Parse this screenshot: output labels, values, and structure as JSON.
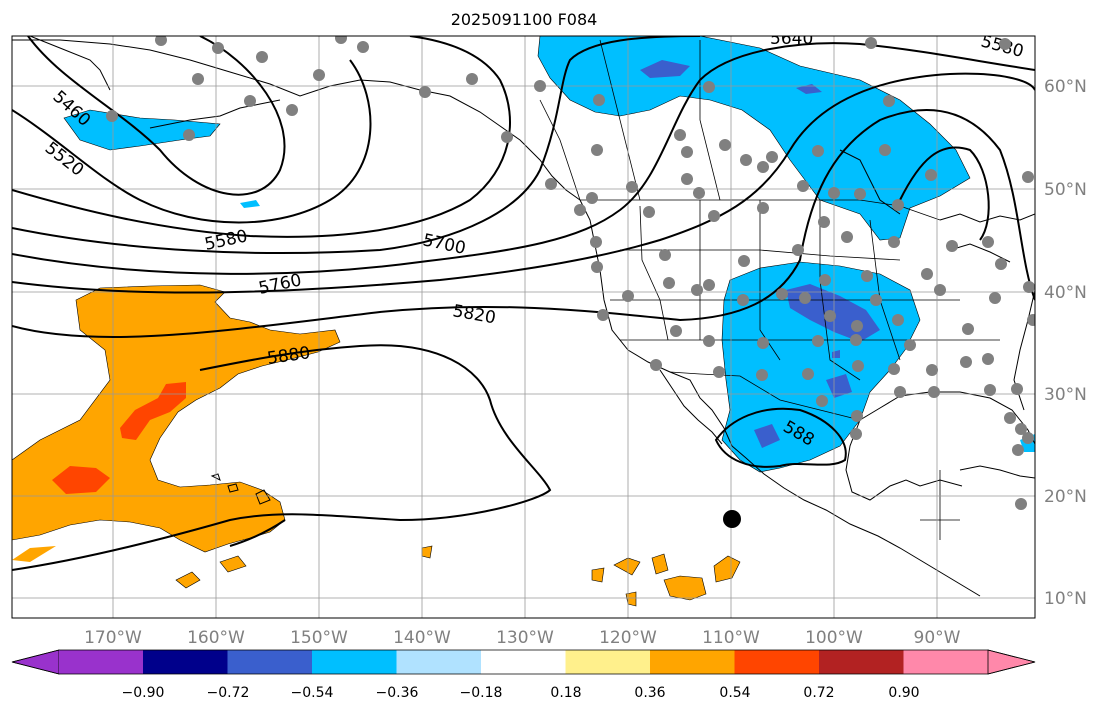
{
  "title": "2025091100 F084",
  "longitude_labels": [
    "170°W",
    "160°W",
    "150°W",
    "140°W",
    "130°W",
    "120°W",
    "110°W",
    "100°W",
    "90°W"
  ],
  "latitude_labels": [
    "60°N",
    "50°N",
    "40°N",
    "30°N",
    "20°N",
    "10°N"
  ],
  "contour_labels": [
    "5460",
    "5520",
    "5580",
    "5700",
    "5760",
    "5820",
    "5880",
    "588",
    "5640",
    "5580"
  ],
  "colorbar": {
    "colors": [
      "#9932cc",
      "#00008b",
      "#3a5fcd",
      "#00bfff",
      "#b0e2ff",
      "#ffffff",
      "#fff08c",
      "#ffa500",
      "#ff4500",
      "#b22222",
      "#ff88aa"
    ],
    "tick_labels": [
      "−0.90",
      "−0.72",
      "−0.54",
      "−0.36",
      "−0.18",
      "0.18",
      "0.36",
      "0.54",
      "0.72",
      "0.90"
    ]
  },
  "palette": {
    "land_outline": "#000000",
    "grid": "#999999",
    "station_dot": "#808080",
    "cyclone_dot": "#000000"
  }
}
